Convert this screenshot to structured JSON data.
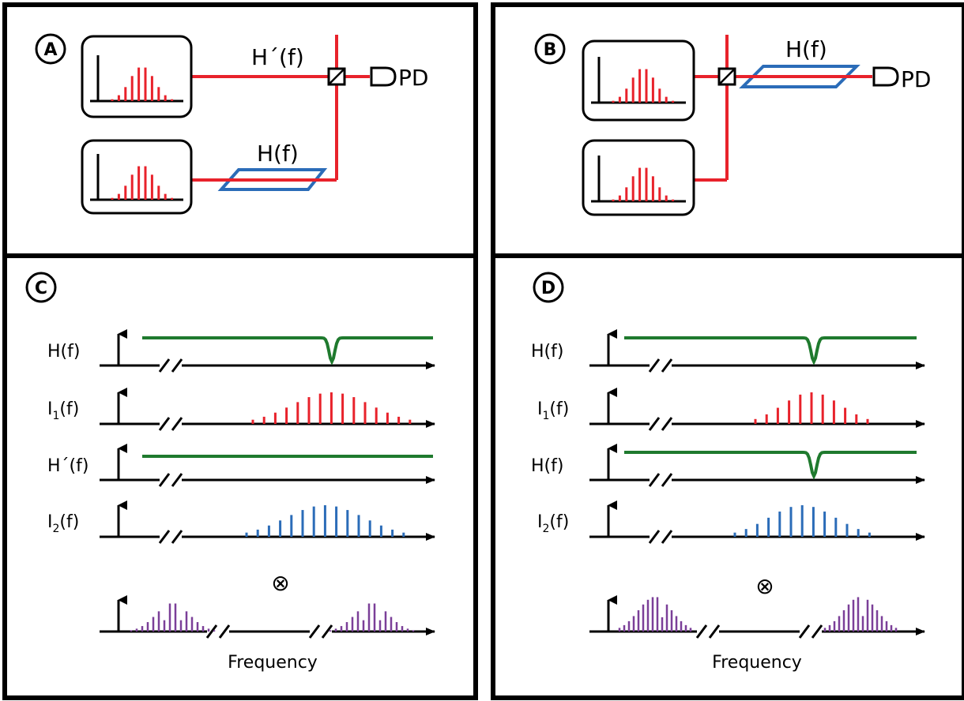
{
  "panels": {
    "A": {
      "badge": "A",
      "filter_label_top": "H´(f)",
      "filter_label_bottom": "H(f)",
      "detector_label": "PD"
    },
    "B": {
      "badge": "B",
      "filter_label": "H(f)",
      "detector_label": "PD"
    },
    "C": {
      "badge": "C",
      "rows": [
        {
          "label": "H(f)"
        },
        {
          "label": "I1(f)",
          "base": "I",
          "sub": "1",
          "rest": "(f)"
        },
        {
          "label": "H´(f)"
        },
        {
          "label": "I2(f)",
          "base": "I",
          "sub": "2",
          "rest": "(f)"
        }
      ],
      "operator": "⊗",
      "xlabel": "Frequency"
    },
    "D": {
      "badge": "D",
      "rows": [
        {
          "label": "H(f)"
        },
        {
          "label": "I1(f)",
          "base": "I",
          "sub": "1",
          "rest": "(f)"
        },
        {
          "label": "H(f)"
        },
        {
          "label": "I2(f)",
          "base": "I",
          "sub": "2",
          "rest": "(f)"
        }
      ],
      "operator": "⊗",
      "xlabel": "Frequency"
    }
  },
  "colors": {
    "laser_line": "#e8222b",
    "comb_red": "#e8222b",
    "comb_blue": "#2b6cb8",
    "comb_purple": "#7b3f98",
    "filter_green": "#1f7a2e",
    "filter_box": "#2b6cb8"
  },
  "icons": {
    "beam_splitter": "beam-splitter-icon",
    "photodetector": "photodetector-icon",
    "frequency_break": "axis-break-icon"
  }
}
